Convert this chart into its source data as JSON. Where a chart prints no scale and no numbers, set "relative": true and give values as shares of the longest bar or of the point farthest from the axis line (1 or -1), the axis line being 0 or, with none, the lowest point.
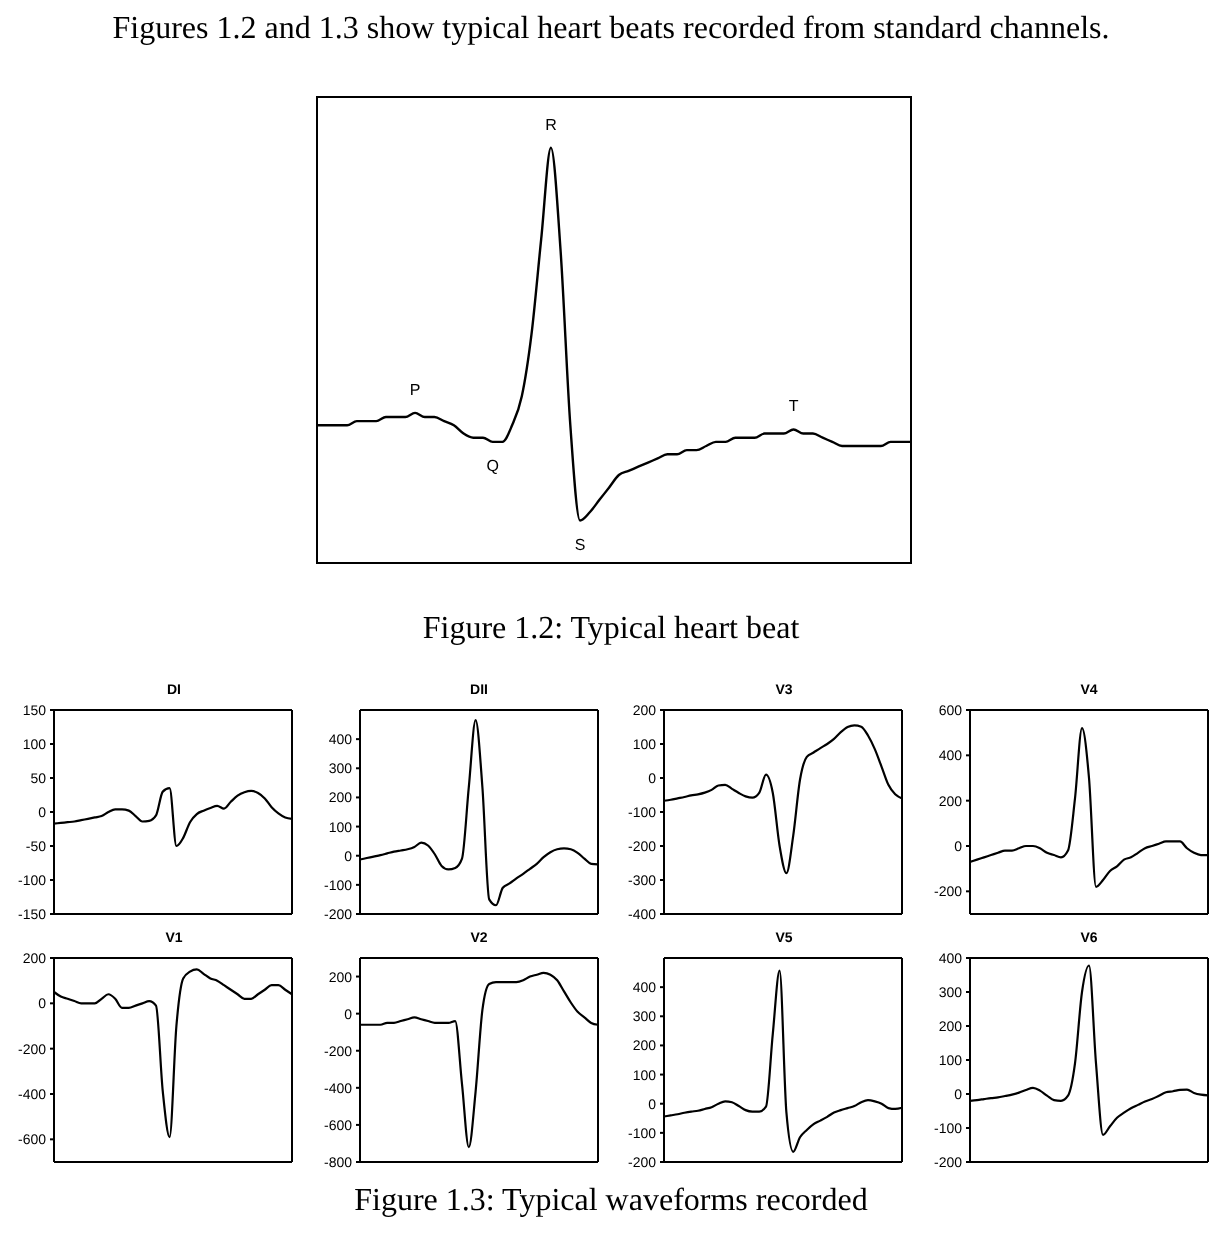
{
  "chart_data": [
    {
      "type": "line",
      "title": "Figures 1.2 and 1.3 show typical heart beats recorded from standard channels.",
      "relative": true,
      "marker": "none",
      "color": "#000000",
      "categories": [
        null,
        null,
        null,
        null,
        null,
        null,
        null,
        null,
        null,
        null,
        null,
        null,
        null,
        null,
        null,
        null,
        null,
        null,
        null,
        null,
        null,
        null,
        null,
        null,
        null,
        null,
        null,
        null,
        null,
        null,
        null,
        null,
        null,
        null,
        null,
        null,
        null,
        null,
        null,
        null,
        null,
        null,
        null,
        null,
        null,
        null,
        null,
        null,
        null,
        null,
        null,
        null,
        null,
        null,
        null,
        null,
        null,
        null,
        null,
        null,
        null,
        null
      ],
      "values": [
        0.33,
        0.33,
        0.33,
        0.33,
        0.34,
        0.34,
        0.34,
        0.35,
        0.35,
        0.35,
        0.36,
        0.35,
        0.35,
        0.34,
        0.33,
        0.31,
        0.3,
        0.3,
        0.29,
        0.29,
        0.33,
        0.4,
        0.55,
        0.78,
        1.0,
        0.75,
        0.33,
        0.1,
        0.12,
        0.15,
        0.18,
        0.21,
        0.22,
        0.23,
        0.24,
        0.25,
        0.26,
        0.26,
        0.27,
        0.27,
        0.28,
        0.29,
        0.29,
        0.3,
        0.3,
        0.3,
        0.31,
        0.31,
        0.31,
        0.32,
        0.31,
        0.31,
        0.3,
        0.29,
        0.28,
        0.28,
        0.28,
        0.28,
        0.28,
        0.29,
        0.29,
        0.29
      ],
      "annotations": [
        {
          "text": "P",
          "y": 0.36
        },
        {
          "text": "Q",
          "y": 0.29
        },
        {
          "text": "R",
          "y": 1.0
        },
        {
          "text": "S",
          "y": 0.1
        },
        {
          "text": "T",
          "y": 0.32
        },
        "Figure 1.2: Typical heart beat"
      ]
    },
    {
      "type": "line",
      "title": "DI",
      "marker": "none",
      "color": "#000000",
      "tick_labels": "y",
      "ylim": [
        -150,
        150
      ],
      "yticks": [
        -150,
        -100,
        -50,
        0,
        50,
        100,
        150
      ],
      "categories": [
        null,
        null,
        null,
        null,
        null,
        null,
        null,
        null,
        null,
        null,
        null,
        null,
        null,
        null,
        null,
        null,
        null,
        null,
        null,
        null,
        null,
        null,
        null,
        null,
        null,
        null,
        null,
        null,
        null,
        null,
        null,
        null,
        null,
        null,
        null,
        null
      ],
      "values": [
        -17,
        -16,
        -15,
        -14,
        -12,
        -10,
        -8,
        -6,
        0,
        4,
        4,
        2,
        -6,
        -14,
        -13,
        -5,
        30,
        35,
        -50,
        -38,
        -15,
        -3,
        2,
        6,
        9,
        5,
        15,
        24,
        29,
        31,
        28,
        20,
        7,
        -2,
        -8,
        -10
      ]
    },
    {
      "type": "line",
      "title": "DII",
      "marker": "none",
      "color": "#000000",
      "tick_labels": "y",
      "ylim": [
        -200,
        500
      ],
      "yticks": [
        -200,
        -100,
        0,
        100,
        200,
        300,
        400
      ],
      "categories": [
        null,
        null,
        null,
        null,
        null,
        null,
        null,
        null,
        null,
        null,
        null,
        null,
        null,
        null,
        null,
        null,
        null,
        null,
        null,
        null,
        null,
        null,
        null,
        null,
        null,
        null,
        null,
        null,
        null,
        null,
        null,
        null,
        null,
        null,
        null,
        null
      ],
      "values": [
        -13,
        -8,
        -3,
        2,
        8,
        14,
        18,
        22,
        30,
        45,
        35,
        5,
        -35,
        -47,
        -42,
        -10,
        235,
        465,
        235,
        -150,
        -170,
        -110,
        -95,
        -78,
        -62,
        -45,
        -28,
        -5,
        12,
        22,
        25,
        22,
        10,
        -10,
        -28,
        -30
      ]
    },
    {
      "type": "line",
      "title": "V3",
      "marker": "none",
      "color": "#000000",
      "tick_labels": "y",
      "ylim": [
        -400,
        200
      ],
      "yticks": [
        -400,
        -300,
        -200,
        -100,
        0,
        100,
        200
      ],
      "categories": [
        null,
        null,
        null,
        null,
        null,
        null,
        null,
        null,
        null,
        null,
        null,
        null,
        null,
        null,
        null,
        null,
        null,
        null,
        null,
        null,
        null,
        null,
        null,
        null,
        null,
        null,
        null,
        null,
        null,
        null,
        null,
        null,
        null,
        null,
        null,
        null
      ],
      "values": [
        -67,
        -64,
        -60,
        -56,
        -51,
        -48,
        -43,
        -35,
        -22,
        -20,
        -32,
        -44,
        -54,
        -58,
        -44,
        10,
        -44,
        -200,
        -280,
        -170,
        -5,
        62,
        75,
        88,
        100,
        115,
        135,
        150,
        155,
        151,
        125,
        85,
        33,
        -20,
        -48,
        -60
      ]
    },
    {
      "type": "line",
      "title": "V4",
      "marker": "none",
      "color": "#000000",
      "tick_labels": "y",
      "ylim": [
        -300,
        600
      ],
      "yticks": [
        -200,
        0,
        200,
        400,
        600
      ],
      "categories": [
        null,
        null,
        null,
        null,
        null,
        null,
        null,
        null,
        null,
        null,
        null,
        null,
        null,
        null,
        null,
        null,
        null,
        null,
        null,
        null,
        null,
        null,
        null,
        null,
        null,
        null,
        null,
        null,
        null,
        null,
        null,
        null,
        null,
        null,
        null
      ],
      "values": [
        -70,
        -60,
        -50,
        -40,
        -30,
        -20,
        -20,
        -10,
        0,
        0,
        -10,
        -30,
        -40,
        -50,
        -20,
        210,
        520,
        300,
        -180,
        -150,
        -110,
        -90,
        -60,
        -50,
        -30,
        -10,
        0,
        10,
        20,
        20,
        20,
        -10,
        -30,
        -40,
        -40
      ]
    },
    {
      "type": "line",
      "title": "V1",
      "marker": "none",
      "color": "#000000",
      "tick_labels": "y",
      "ylim": [
        -700,
        200
      ],
      "yticks": [
        -600,
        -400,
        -200,
        0,
        200
      ],
      "categories": [
        null,
        null,
        null,
        null,
        null,
        null,
        null,
        null,
        null,
        null,
        null,
        null,
        null,
        null,
        null,
        null,
        null,
        null,
        null,
        null,
        null,
        null,
        null,
        null,
        null,
        null,
        null,
        null,
        null,
        null,
        null,
        null,
        null,
        null,
        null,
        null
      ],
      "values": [
        50,
        30,
        20,
        10,
        0,
        0,
        0,
        20,
        40,
        20,
        -20,
        -20,
        -10,
        0,
        10,
        -10,
        -390,
        -590,
        -100,
        110,
        140,
        150,
        130,
        110,
        100,
        80,
        60,
        40,
        20,
        20,
        40,
        60,
        80,
        80,
        60,
        40
      ]
    },
    {
      "type": "line",
      "title": "V2",
      "marker": "none",
      "color": "#000000",
      "tick_labels": "y",
      "ylim": [
        -800,
        300
      ],
      "yticks": [
        -800,
        -600,
        -400,
        -200,
        0,
        200
      ],
      "categories": [
        null,
        null,
        null,
        null,
        null,
        null,
        null,
        null,
        null,
        null,
        null,
        null,
        null,
        null,
        null,
        null,
        null,
        null,
        null,
        null,
        null,
        null,
        null,
        null,
        null,
        null,
        null,
        null,
        null,
        null,
        null,
        null,
        null,
        null,
        null,
        null
      ],
      "values": [
        -60,
        -60,
        -60,
        -60,
        -50,
        -50,
        -40,
        -30,
        -20,
        -30,
        -40,
        -50,
        -50,
        -50,
        -40,
        -380,
        -720,
        -420,
        20,
        160,
        170,
        170,
        170,
        170,
        180,
        200,
        210,
        220,
        210,
        180,
        120,
        60,
        10,
        -20,
        -50,
        -60
      ]
    },
    {
      "type": "line",
      "title": "V5",
      "marker": "none",
      "color": "#000000",
      "tick_labels": "y",
      "ylim": [
        -200,
        500
      ],
      "yticks": [
        -200,
        -100,
        0,
        100,
        200,
        300,
        400
      ],
      "categories": [
        null,
        null,
        null,
        null,
        null,
        null,
        null,
        null,
        null,
        null,
        null,
        null,
        null,
        null,
        null,
        null,
        null,
        null,
        null,
        null,
        null,
        null,
        null,
        null,
        null,
        null,
        null,
        null,
        null,
        null,
        null,
        null,
        null,
        null,
        null,
        null
      ],
      "values": [
        -44,
        -40,
        -36,
        -31,
        -27,
        -24,
        -18,
        -12,
        0,
        8,
        5,
        -8,
        -22,
        -27,
        -27,
        -10,
        240,
        457,
        -30,
        -165,
        -115,
        -90,
        -70,
        -58,
        -45,
        -30,
        -22,
        -15,
        -8,
        5,
        12,
        8,
        0,
        -15,
        -18,
        -14
      ]
    },
    {
      "type": "line",
      "title": "V6",
      "marker": "none",
      "color": "#000000",
      "tick_labels": "y",
      "ylim": [
        -200,
        400
      ],
      "yticks": [
        -200,
        -100,
        0,
        100,
        200,
        300,
        400
      ],
      "categories": [
        null,
        null,
        null,
        null,
        null,
        null,
        null,
        null,
        null,
        null,
        null,
        null,
        null,
        null,
        null,
        null,
        null,
        null,
        null,
        null,
        null,
        null,
        null,
        null,
        null,
        null,
        null,
        null,
        null,
        null,
        null,
        null,
        null,
        null,
        null
      ],
      "values": [
        -20,
        -18,
        -15,
        -12,
        -10,
        -6,
        -2,
        4,
        12,
        18,
        10,
        -5,
        -18,
        -20,
        -5,
        90,
        300,
        378,
        90,
        -120,
        -95,
        -70,
        -55,
        -42,
        -32,
        -22,
        -15,
        -5,
        5,
        8,
        12,
        13,
        3,
        -2,
        -4
      ],
      "annotations": [
        "Figure 1.3: Typical waveforms recorded"
      ]
    }
  ]
}
